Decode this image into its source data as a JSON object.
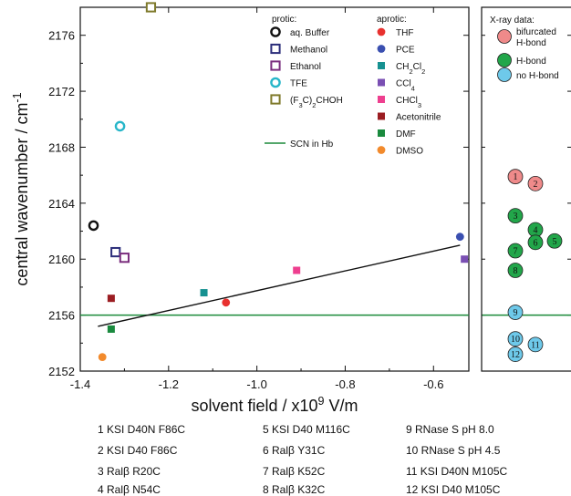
{
  "chart_data": [
    {
      "type": "scatter",
      "xlabel": "solvent field / x10^9 V/m",
      "ylabel": "central wavenumber / cm^-1",
      "xlim": [
        -1.4,
        -0.52
      ],
      "ylim": [
        2152,
        2178
      ],
      "x_ticks": [
        "-1.4",
        "-1.2",
        "-1.0",
        "-0.8",
        "-0.6"
      ],
      "x_tick_values": [
        -1.4,
        -1.2,
        -1.0,
        -0.8,
        -0.6
      ],
      "y_ticks": [
        "2152",
        "2156",
        "2160",
        "2164",
        "2168",
        "2172",
        "2176"
      ],
      "y_tick_values": [
        2152,
        2156,
        2160,
        2164,
        2168,
        2172,
        2176
      ],
      "grid": false,
      "legend_groups": {
        "protic": "protic:",
        "aprotic": "aprotic:"
      },
      "series": [
        {
          "name": "aq. Buffer",
          "group": "protic",
          "marker": "circle-open",
          "color": "#111111",
          "x": [
            -1.37
          ],
          "y": [
            2162.4
          ]
        },
        {
          "name": "Methanol",
          "group": "protic",
          "marker": "square-open",
          "color": "#2b2d7a",
          "x": [
            -1.32
          ],
          "y": [
            2160.5
          ]
        },
        {
          "name": "Ethanol",
          "group": "protic",
          "marker": "square-open",
          "color": "#7a2e7e",
          "x": [
            -1.3
          ],
          "y": [
            2160.1
          ]
        },
        {
          "name": "TFE",
          "group": "protic",
          "marker": "circle-open",
          "color": "#27b6c9",
          "x": [
            -1.31
          ],
          "y": [
            2169.5
          ]
        },
        {
          "name": "(F3C)2CHOH",
          "group": "protic",
          "marker": "square-open",
          "color": "#7f7a2c",
          "x": [
            -1.24
          ],
          "y": [
            2178.0
          ]
        },
        {
          "name": "THF",
          "group": "aprotic",
          "marker": "circle",
          "color": "#e8312f",
          "x": [
            -1.07
          ],
          "y": [
            2156.9
          ]
        },
        {
          "name": "PCE",
          "group": "aprotic",
          "marker": "circle",
          "color": "#3a4fb0",
          "x": [
            -0.54
          ],
          "y": [
            2161.6
          ]
        },
        {
          "name": "CH2Cl2",
          "group": "aprotic",
          "marker": "square",
          "color": "#169191",
          "x": [
            -1.12
          ],
          "y": [
            2157.6
          ]
        },
        {
          "name": "CCl4",
          "group": "aprotic",
          "marker": "square",
          "color": "#7a4fb3",
          "x": [
            -0.53
          ],
          "y": [
            2160.0
          ]
        },
        {
          "name": "CHCl3",
          "group": "aprotic",
          "marker": "square",
          "color": "#ee3f8f",
          "x": [
            -0.91
          ],
          "y": [
            2159.2
          ]
        },
        {
          "name": "Acetonitrile",
          "group": "aprotic",
          "marker": "square",
          "color": "#9b1d22",
          "x": [
            -1.33
          ],
          "y": [
            2157.2
          ]
        },
        {
          "name": "DMF",
          "group": "aprotic",
          "marker": "square",
          "color": "#1a8a3e",
          "x": [
            -1.33
          ],
          "y": [
            2155.0
          ]
        },
        {
          "name": "DMSO",
          "group": "aprotic",
          "marker": "circle",
          "color": "#f28a2c",
          "x": [
            -1.35
          ],
          "y": [
            2153.0
          ]
        }
      ],
      "fit_line": {
        "x": [
          -1.36,
          -0.54
        ],
        "y": [
          2155.2,
          2161.0
        ],
        "color": "#111111"
      },
      "reference_line": {
        "name": "SCN in Hb",
        "y": 2156.0,
        "color": "#1b8a3a"
      }
    },
    {
      "type": "scatter",
      "title": "X-ray data:",
      "categories_legend": [
        {
          "label": "bifurcated H-bond",
          "color": "#ef8a8a"
        },
        {
          "label": "H-bond",
          "color": "#22a64a"
        },
        {
          "label": "no H-bond",
          "color": "#6ec9ea"
        }
      ],
      "points": [
        {
          "label": "1",
          "y": 2165.9,
          "category": "bifurcated H-bond"
        },
        {
          "label": "2",
          "y": 2165.4,
          "category": "bifurcated H-bond"
        },
        {
          "label": "3",
          "y": 2163.1,
          "category": "H-bond"
        },
        {
          "label": "4",
          "y": 2162.1,
          "category": "H-bond"
        },
        {
          "label": "5",
          "y": 2161.3,
          "category": "H-bond"
        },
        {
          "label": "6",
          "y": 2161.2,
          "category": "H-bond"
        },
        {
          "label": "7",
          "y": 2160.6,
          "category": "H-bond"
        },
        {
          "label": "8",
          "y": 2159.2,
          "category": "H-bond"
        },
        {
          "label": "9",
          "y": 2156.2,
          "category": "no H-bond"
        },
        {
          "label": "10",
          "y": 2154.3,
          "category": "no H-bond"
        },
        {
          "label": "11",
          "y": 2153.9,
          "category": "no H-bond"
        },
        {
          "label": "12",
          "y": 2153.2,
          "category": "no H-bond"
        }
      ],
      "reference_line_y": 2156.0
    }
  ],
  "key": [
    "1 KSI D40N F86C",
    "2 KSI D40 F86C",
    "3 Ralβ R20C",
    "4 Ralβ N54C",
    "5 KSI D40 M116C",
    "6 Ralβ Y31C",
    "7 Ralβ K52C",
    "8 Ralβ K32C",
    "9  RNase S pH 8.0",
    "10 RNase S pH 4.5",
    "11 KSI D40N M105C",
    "12 KSI D40 M105C"
  ]
}
